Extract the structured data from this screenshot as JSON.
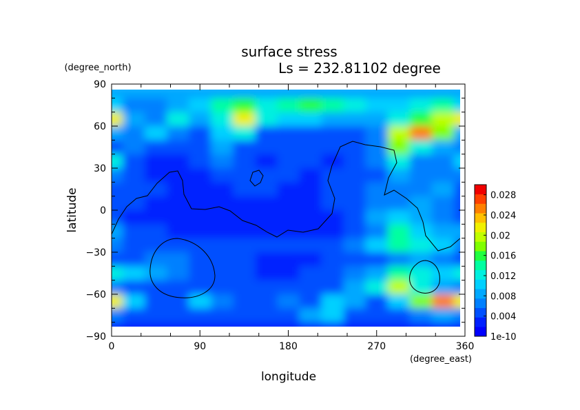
{
  "chart_data": {
    "type": "heatmap",
    "title": "surface stress",
    "subtitle": "Ls = 232.81102 degree",
    "xlabel": "longitude",
    "ylabel": "latitude",
    "x_unit": "(degree_east)",
    "y_unit": "(degree_north)",
    "xlim": [
      0,
      360
    ],
    "ylim": [
      -90,
      90
    ],
    "x_ticks": [
      "0",
      "90",
      "180",
      "270",
      "360"
    ],
    "y_ticks": [
      "90",
      "60",
      "30",
      "0",
      "−30",
      "−60",
      "−90"
    ],
    "x_tick_values": [
      0,
      90,
      180,
      270,
      360
    ],
    "y_tick_values": [
      90,
      60,
      30,
      0,
      -30,
      -60,
      -90
    ],
    "colorbar": {
      "ticks": [
        "0.028",
        "0.024",
        "0.02",
        "0.016",
        "0.012",
        "0.008",
        "0.004",
        "1e-10"
      ],
      "tick_values": [
        0.028,
        0.024,
        0.02,
        0.016,
        0.012,
        0.008,
        0.004,
        0
      ],
      "range": [
        0,
        0.03
      ],
      "colors": [
        "#0000ff",
        "#0020ff",
        "#0050ff",
        "#0080ff",
        "#00a8ff",
        "#00d0ff",
        "#00f0e0",
        "#00ffa0",
        "#20ff40",
        "#80ff00",
        "#c0ff00",
        "#f0f000",
        "#ffc000",
        "#ff8000",
        "#ff4000",
        "#f00000"
      ]
    },
    "values_lat": [
      85,
      75,
      65,
      55,
      45,
      35,
      25,
      15,
      5,
      -5,
      -15,
      -25,
      -35,
      -45,
      -55,
      -65,
      -75,
      -85
    ],
    "values_lon": [
      0,
      22.5,
      45,
      67.5,
      90,
      112.5,
      135,
      157.5,
      180,
      202.5,
      225,
      247.5,
      270,
      292.5,
      315,
      337.5,
      360
    ],
    "values": [
      [
        0.008,
        0.008,
        0.008,
        0.008,
        0.008,
        0.008,
        0.008,
        0.008,
        0.009,
        0.009,
        0.008,
        0.008,
        0.008,
        0.008,
        0.008,
        0.008,
        0.008
      ],
      [
        0.01,
        0.006,
        0.006,
        0.008,
        0.01,
        0.014,
        0.016,
        0.012,
        0.014,
        0.016,
        0.014,
        0.012,
        0.01,
        0.01,
        0.012,
        0.014,
        0.01
      ],
      [
        0.022,
        0.008,
        0.006,
        0.012,
        0.008,
        0.012,
        0.022,
        0.012,
        0.01,
        0.01,
        0.008,
        0.008,
        0.008,
        0.012,
        0.016,
        0.02,
        0.022
      ],
      [
        0.008,
        0.006,
        0.01,
        0.006,
        0.004,
        0.01,
        0.012,
        0.004,
        0.004,
        0.004,
        0.004,
        0.004,
        0.006,
        0.02,
        0.026,
        0.018,
        0.008
      ],
      [
        0.004,
        0.006,
        0.004,
        0.004,
        0.004,
        0.008,
        0.004,
        0.004,
        0.004,
        0.004,
        0.004,
        0.004,
        0.006,
        0.018,
        0.012,
        0.008,
        0.006
      ],
      [
        0.012,
        0.004,
        0.002,
        0.002,
        0.004,
        0.006,
        0.004,
        0.002,
        0.004,
        0.004,
        0.002,
        0.004,
        0.006,
        0.012,
        0.006,
        0.006,
        0.01
      ],
      [
        0.006,
        0.004,
        0.002,
        0.002,
        0.002,
        0.004,
        0.004,
        0.004,
        0.004,
        0.002,
        0.004,
        0.004,
        0.004,
        0.008,
        0.006,
        0.006,
        0.006
      ],
      [
        0.004,
        0.004,
        0.004,
        0.002,
        0.002,
        0.002,
        0.004,
        0.004,
        0.002,
        0.002,
        0.004,
        0.004,
        0.006,
        0.006,
        0.006,
        0.008,
        0.004
      ],
      [
        0.004,
        0.004,
        0.002,
        0.002,
        0.002,
        0.002,
        0.002,
        0.002,
        0.002,
        0.002,
        0.004,
        0.004,
        0.006,
        0.006,
        0.008,
        0.006,
        0.004
      ],
      [
        0.004,
        0.002,
        0.002,
        0.002,
        0.002,
        0.002,
        0.002,
        0.002,
        0.002,
        0.002,
        0.002,
        0.004,
        0.008,
        0.01,
        0.008,
        0.006,
        0.004
      ],
      [
        0.008,
        0.004,
        0.004,
        0.002,
        0.002,
        0.002,
        0.002,
        0.002,
        0.002,
        0.002,
        0.002,
        0.004,
        0.006,
        0.014,
        0.01,
        0.008,
        0.008
      ],
      [
        0.006,
        0.004,
        0.004,
        0.004,
        0.004,
        0.004,
        0.004,
        0.004,
        0.004,
        0.004,
        0.004,
        0.006,
        0.01,
        0.014,
        0.012,
        0.01,
        0.006
      ],
      [
        0.004,
        0.004,
        0.006,
        0.006,
        0.004,
        0.004,
        0.004,
        0.002,
        0.002,
        0.002,
        0.004,
        0.004,
        0.004,
        0.006,
        0.008,
        0.006,
        0.004
      ],
      [
        0.012,
        0.01,
        0.008,
        0.006,
        0.004,
        0.004,
        0.004,
        0.002,
        0.002,
        0.004,
        0.004,
        0.006,
        0.008,
        0.014,
        0.012,
        0.01,
        0.012
      ],
      [
        0.006,
        0.004,
        0.004,
        0.004,
        0.004,
        0.004,
        0.004,
        0.004,
        0.004,
        0.004,
        0.004,
        0.008,
        0.012,
        0.02,
        0.012,
        0.008,
        0.006
      ],
      [
        0.022,
        0.01,
        0.004,
        0.004,
        0.01,
        0.006,
        0.004,
        0.004,
        0.006,
        0.004,
        0.01,
        0.008,
        0.004,
        0.01,
        0.018,
        0.026,
        0.022
      ],
      [
        0.006,
        0.004,
        0.004,
        0.004,
        0.004,
        0.004,
        0.004,
        0.004,
        0.004,
        0.008,
        0.01,
        0.004,
        0.004,
        0.004,
        0.006,
        0.008,
        0.006
      ],
      [
        0.002,
        0.002,
        0.002,
        0.002,
        0.002,
        0.002,
        0.002,
        0.002,
        0.002,
        0.002,
        0.002,
        0.002,
        0.002,
        0.002,
        0.002,
        0.002,
        0.002
      ]
    ],
    "grid": false
  }
}
